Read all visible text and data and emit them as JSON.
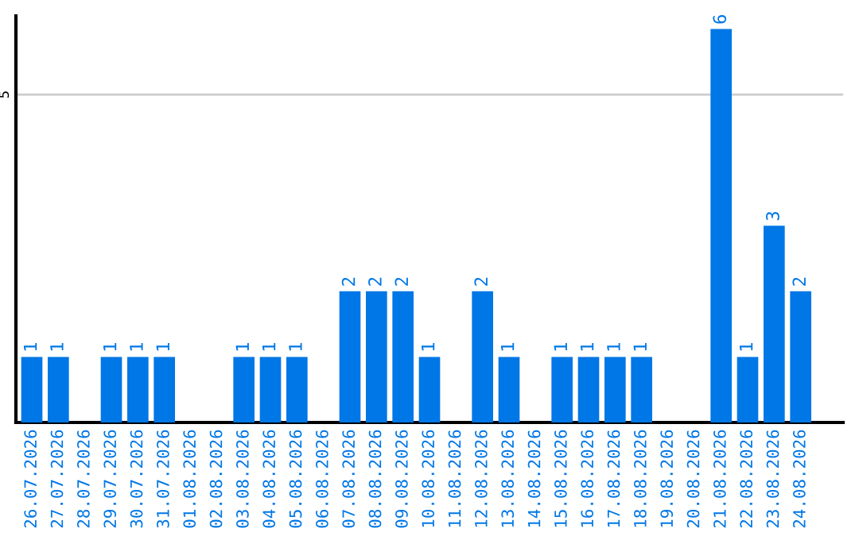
{
  "chart_data": {
    "type": "bar",
    "categories": [
      "26.07.2026",
      "27.07.2026",
      "28.07.2026",
      "29.07.2026",
      "30.07.2026",
      "31.07.2026",
      "01.08.2026",
      "02.08.2026",
      "03.08.2026",
      "04.08.2026",
      "05.08.2026",
      "06.08.2026",
      "07.08.2026",
      "08.08.2026",
      "09.08.2026",
      "10.08.2026",
      "11.08.2026",
      "12.08.2026",
      "13.08.2026",
      "14.08.2026",
      "15.08.2026",
      "16.08.2026",
      "17.08.2026",
      "18.08.2026",
      "19.08.2026",
      "20.08.2026",
      "21.08.2026",
      "22.08.2026",
      "23.08.2026",
      "24.08.2026"
    ],
    "values": [
      1,
      1,
      0,
      1,
      1,
      1,
      0,
      0,
      1,
      1,
      1,
      0,
      2,
      2,
      2,
      1,
      0,
      2,
      1,
      0,
      1,
      1,
      1,
      1,
      0,
      0,
      6,
      1,
      3,
      2
    ],
    "value_labels": [
      "1",
      "1",
      null,
      "1",
      "1",
      "1",
      null,
      null,
      "1",
      "1",
      "1",
      null,
      "2",
      "2",
      "2",
      "1",
      null,
      "2",
      "1",
      null,
      "1",
      "1",
      "1",
      "1",
      null,
      null,
      "6",
      "1",
      "3",
      "2"
    ],
    "color": "#0077e6",
    "ylim": [
      0,
      6.2
    ],
    "yticks": [
      5
    ],
    "grid": "y",
    "legend": false
  }
}
